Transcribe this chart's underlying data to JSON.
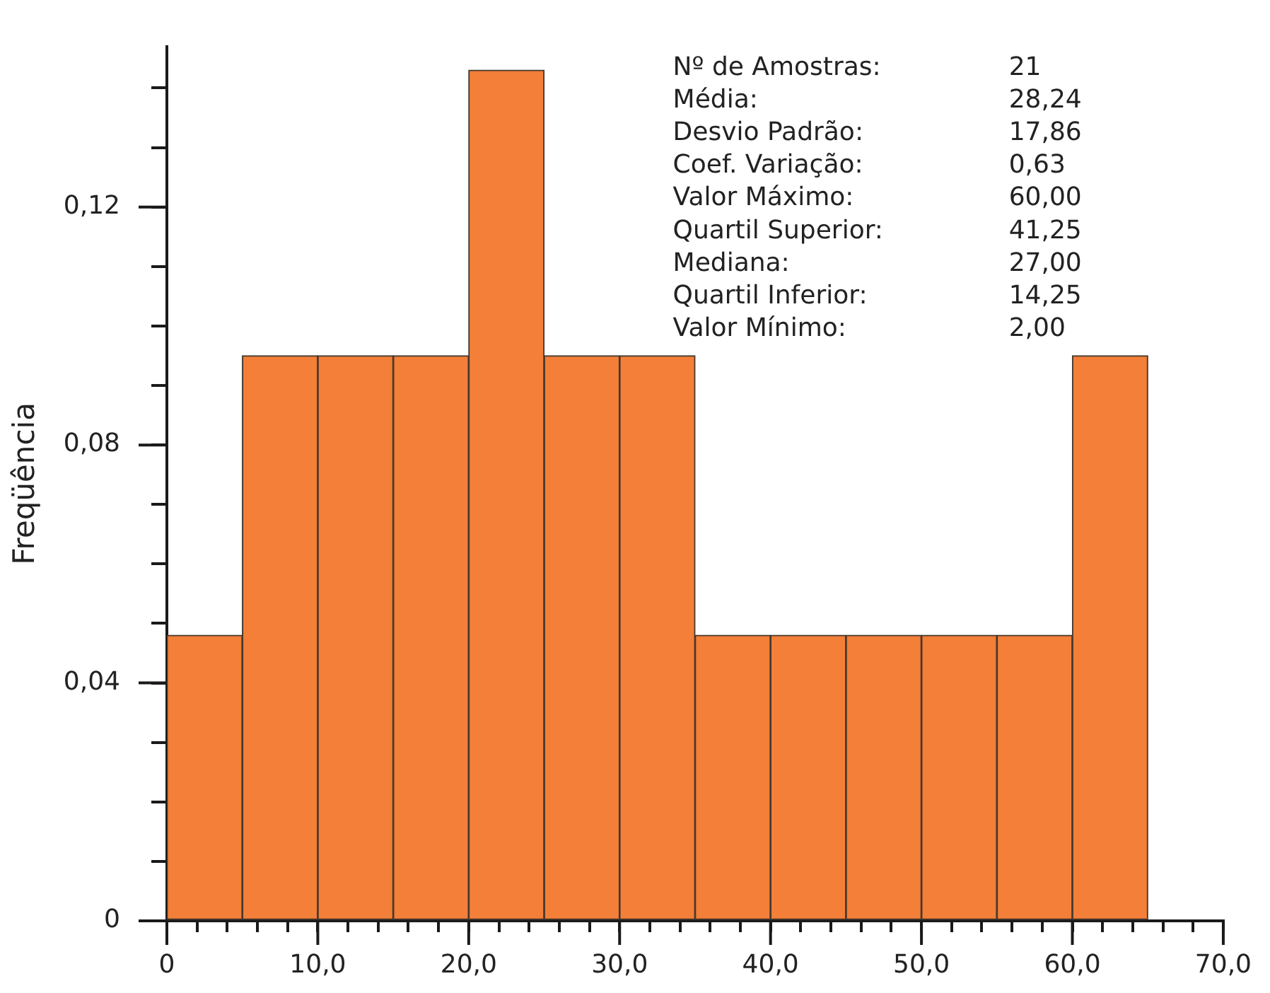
{
  "chart_data": {
    "type": "histogram",
    "ylabel": "Freqüência",
    "bins": [
      0,
      5,
      10,
      15,
      20,
      25,
      30,
      35,
      40,
      45,
      50,
      55,
      60,
      65
    ],
    "values": [
      0.048,
      0.095,
      0.095,
      0.095,
      0.143,
      0.095,
      0.095,
      0.048,
      0.048,
      0.048,
      0.048,
      0.048,
      0.095
    ],
    "color": "#f37f38",
    "xlim": [
      0,
      70
    ],
    "xticks": [
      0,
      {
        "value": 2,
        "label": null
      },
      {
        "value": 4,
        "label": null
      },
      {
        "value": 6,
        "label": null
      },
      {
        "value": 8,
        "label": null
      },
      {
        "value": 10,
        "label": "10,0"
      },
      {
        "value": 12,
        "label": null
      },
      {
        "value": 14,
        "label": null
      },
      {
        "value": 16,
        "label": null
      },
      {
        "value": 18,
        "label": null
      },
      {
        "value": 20,
        "label": "20,0"
      },
      {
        "value": 22,
        "label": null
      },
      {
        "value": 24,
        "label": null
      },
      {
        "value": 26,
        "label": null
      },
      {
        "value": 28,
        "label": null
      },
      {
        "value": 30,
        "label": "30,0"
      },
      {
        "value": 32,
        "label": null
      },
      {
        "value": 34,
        "label": null
      },
      {
        "value": 36,
        "label": null
      },
      {
        "value": 38,
        "label": null
      },
      {
        "value": 40,
        "label": "40,0"
      },
      {
        "value": 42,
        "label": null
      },
      {
        "value": 44,
        "label": null
      },
      {
        "value": 46,
        "label": null
      },
      {
        "value": 48,
        "label": null
      },
      {
        "value": 50,
        "label": "50,0"
      },
      {
        "value": 52,
        "label": null
      },
      {
        "value": 54,
        "label": null
      },
      {
        "value": 56,
        "label": null
      },
      {
        "value": 58,
        "label": null
      },
      {
        "value": 60,
        "label": "60,0"
      },
      {
        "value": 62,
        "label": null
      },
      {
        "value": 64,
        "label": null
      },
      {
        "value": 66,
        "label": null
      },
      {
        "value": 68,
        "label": null
      },
      {
        "value": 70,
        "label": "70,0"
      }
    ],
    "ylim": [
      0,
      0.147
    ],
    "yticks": [
      0,
      {
        "value": 0.01,
        "label": null
      },
      {
        "value": 0.02,
        "label": null
      },
      {
        "value": 0.03,
        "label": null
      },
      {
        "value": 0.04,
        "label": "0,04"
      },
      {
        "value": 0.05,
        "label": null
      },
      {
        "value": 0.06,
        "label": null
      },
      {
        "value": 0.07,
        "label": null
      },
      {
        "value": 0.08,
        "label": "0,08"
      },
      {
        "value": 0.09,
        "label": null
      },
      {
        "value": 0.1,
        "label": null
      },
      {
        "value": 0.11,
        "label": null
      },
      {
        "value": 0.12,
        "label": "0,12"
      },
      {
        "value": 0.13,
        "label": null
      },
      {
        "value": 0.14,
        "label": null
      }
    ],
    "annotations": [
      "Nº de Amostras:",
      "21",
      "Média:",
      "28,24",
      "Desvio Padrão:",
      "17,86",
      "Coef. Variação:",
      "0,63",
      "Valor Máximo:",
      "60,00",
      "Quartil Superior:",
      "41,25",
      "Mediana:",
      "27,00",
      "Quartil Inferior:",
      "14,25",
      "Valor Mínimo:",
      "2,00"
    ],
    "grid": false
  }
}
